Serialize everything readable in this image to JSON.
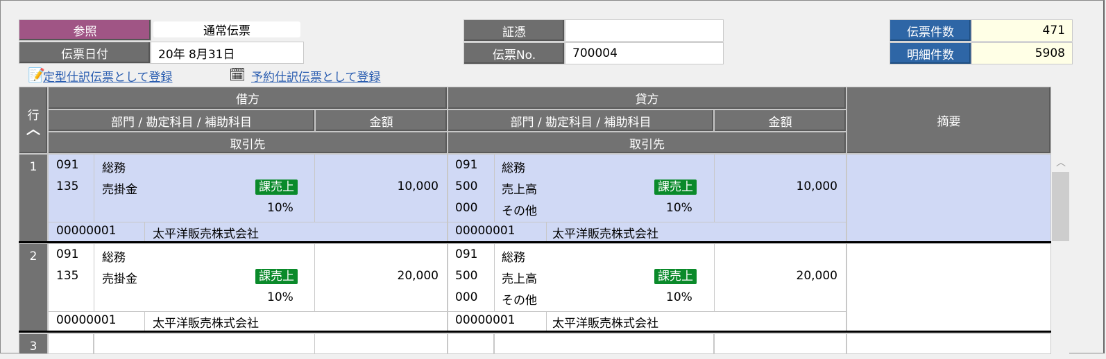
{
  "header": {
    "ref_label": "参照",
    "ref_value": "通常伝票",
    "date_label": "伝票日付",
    "date_value": "20年  8月31日",
    "evidence_label": "証憑",
    "evidence_value": "",
    "no_label": "伝票No.",
    "no_value": "700004",
    "count_label": "伝票件数",
    "count_value": "471",
    "detail_label": "明細件数",
    "detail_value": "5908"
  },
  "links": {
    "template": "定型仕訳伝票として登録",
    "reserve": "予約仕訳伝票として登録"
  },
  "table": {
    "row_header": "行",
    "debit": "借方",
    "credit": "貸方",
    "account_header": "部門 / 勘定科目 / 補助科目",
    "amount_header": "金額",
    "partner_header": "取引先",
    "memo_header": "摘要",
    "rows": [
      {
        "no": "1",
        "debit": {
          "dept_code": "091",
          "dept": "総務",
          "acct_code": "135",
          "acct": "売掛金",
          "tax": "課売上",
          "rate": "10%",
          "amount": "10,000"
        },
        "credit": {
          "dept_code": "091",
          "dept": "総務",
          "acct_code": "500",
          "acct": "売上高",
          "tax": "課売上",
          "sub_code": "000",
          "sub": "その他",
          "rate": "10%",
          "amount": "10,000"
        },
        "debit_partner_code": "00000001",
        "debit_partner": "太平洋販売株式会社",
        "credit_partner_code": "00000001",
        "credit_partner": "太平洋販売株式会社",
        "memo": ""
      },
      {
        "no": "2",
        "debit": {
          "dept_code": "091",
          "dept": "総務",
          "acct_code": "135",
          "acct": "売掛金",
          "tax": "課売上",
          "rate": "10%",
          "amount": "20,000"
        },
        "credit": {
          "dept_code": "091",
          "dept": "総務",
          "acct_code": "500",
          "acct": "売上高",
          "tax": "課売上",
          "sub_code": "000",
          "sub": "その他",
          "rate": "10%",
          "amount": "20,000"
        },
        "debit_partner_code": "00000001",
        "debit_partner": "太平洋販売株式会社",
        "credit_partner_code": "00000001",
        "credit_partner": "太平洋販売株式会社",
        "memo": ""
      },
      {
        "no": "3"
      }
    ]
  },
  "colors": {
    "selected_row": "#d0d9f5",
    "badge": "#0a8a2a",
    "ref_label": "#a05585",
    "count_label": "#2e66a6"
  }
}
